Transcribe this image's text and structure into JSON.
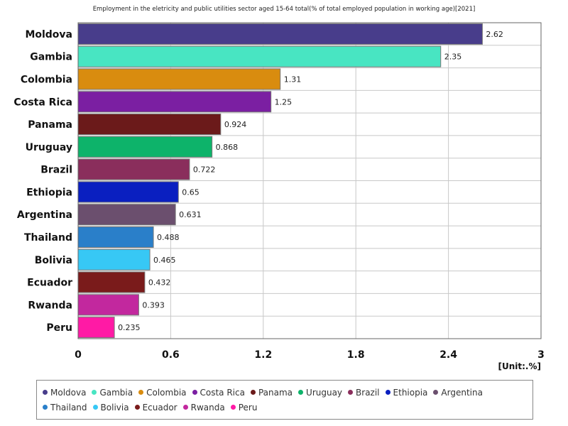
{
  "chart_data": {
    "type": "bar",
    "orientation": "horizontal",
    "title": "Employment in the eletricity and public utilities sector aged 15-64 total(% of total employed population in working age)[2021]",
    "unit": "[Unit:.%]",
    "categories": [
      "Moldova",
      "Gambia",
      "Colombia",
      "Costa Rica",
      "Panama",
      "Uruguay",
      "Brazil",
      "Ethiopia",
      "Argentina",
      "Thailand",
      "Bolivia",
      "Ecuador",
      "Rwanda",
      "Peru"
    ],
    "values": [
      2.62,
      2.35,
      1.31,
      1.25,
      0.924,
      0.868,
      0.722,
      0.65,
      0.631,
      0.488,
      0.465,
      0.432,
      0.393,
      0.235
    ],
    "value_labels": [
      "2.62",
      "2.35",
      "1.31",
      "1.25",
      "0.924",
      "0.868",
      "0.722",
      "0.65",
      "0.631",
      "0.488",
      "0.465",
      "0.432",
      "0.393",
      "0.235"
    ],
    "colors": [
      "#483d8b",
      "#48e5c2",
      "#d98c0f",
      "#7b1fa2",
      "#6b1a1a",
      "#0db36a",
      "#8a2e5c",
      "#0a1fc0",
      "#6b4f6e",
      "#2a7fc9",
      "#37c8f5",
      "#7a1b1b",
      "#c2289e",
      "#ff1aa5"
    ],
    "xlim": [
      0,
      3
    ],
    "xticks": [
      0,
      0.6,
      1.2,
      1.8,
      2.4,
      3
    ],
    "xtick_labels": [
      "0",
      "0.6",
      "1.2",
      "1.8",
      "2.4",
      "3"
    ],
    "grid": true,
    "legend_position": "bottom"
  }
}
